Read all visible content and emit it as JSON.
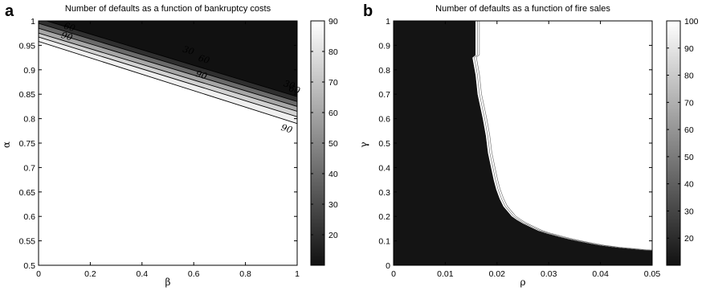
{
  "chart_data": [
    {
      "panel": "a",
      "type": "contour",
      "title": "Number of defaults as a function of bankruptcy costs",
      "xlabel": "β",
      "ylabel": "α",
      "xlim": [
        0,
        1
      ],
      "ylim": [
        0.5,
        1
      ],
      "xticks": [
        "0",
        "0.2",
        "0.4",
        "0.6",
        "0.8",
        "1"
      ],
      "yticks": [
        "0.5",
        "0.55",
        "0.6",
        "0.65",
        "0.7",
        "0.75",
        "0.8",
        "0.85",
        "0.9",
        "0.95",
        "1"
      ],
      "colorbar": {
        "min": 10,
        "max": 90,
        "ticks": [
          "20",
          "30",
          "40",
          "50",
          "60",
          "70",
          "80",
          "90"
        ]
      },
      "contour_lines": [
        {
          "level": 10,
          "x": [
            0,
            1
          ],
          "y": [
            1.005,
            0.845
          ]
        },
        {
          "level": 30,
          "x": [
            0,
            1
          ],
          "y": [
            0.995,
            0.835
          ]
        },
        {
          "level": 50,
          "x": [
            0,
            1
          ],
          "y": [
            0.985,
            0.825
          ]
        },
        {
          "level": 70,
          "x": [
            0,
            1
          ],
          "y": [
            0.975,
            0.815
          ]
        },
        {
          "level": 80,
          "x": [
            0,
            1
          ],
          "y": [
            0.967,
            0.804
          ]
        },
        {
          "level": 90,
          "x": [
            0,
            1
          ],
          "y": [
            0.958,
            0.79
          ]
        }
      ],
      "contour_labels": [
        {
          "text": "60",
          "x": 0.12,
          "y": 0.988
        },
        {
          "text": "90",
          "x": 0.11,
          "y": 0.969
        },
        {
          "text": "30",
          "x": 0.58,
          "y": 0.94
        },
        {
          "text": "60",
          "x": 0.64,
          "y": 0.922
        },
        {
          "text": "90",
          "x": 0.63,
          "y": 0.89
        },
        {
          "text": "30",
          "x": 0.97,
          "y": 0.87
        },
        {
          "text": "60",
          "x": 0.99,
          "y": 0.86
        },
        {
          "text": "90",
          "x": 0.96,
          "y": 0.78
        }
      ]
    },
    {
      "panel": "b",
      "type": "contour",
      "title": "Number of defaults as a function of fire sales",
      "xlabel": "ρ",
      "ylabel": "γ",
      "xlim": [
        0,
        0.05
      ],
      "ylim": [
        0,
        1
      ],
      "xticks": [
        "0",
        "0.01",
        "0.02",
        "0.03",
        "0.04",
        "0.05"
      ],
      "yticks": [
        "0",
        "0.1",
        "0.2",
        "0.3",
        "0.4",
        "0.5",
        "0.6",
        "0.7",
        "0.8",
        "0.9",
        "1"
      ],
      "colorbar": {
        "min": 10,
        "max": 100,
        "ticks": [
          "20",
          "30",
          "40",
          "50",
          "60",
          "70",
          "80",
          "90",
          "100"
        ]
      },
      "boundary": {
        "x": [
          0.0158,
          0.0158,
          0.0152,
          0.0158,
          0.0162,
          0.0172,
          0.0178,
          0.0182,
          0.0188,
          0.0193,
          0.0198,
          0.0205,
          0.0212,
          0.022,
          0.0228,
          0.0238,
          0.025,
          0.0265,
          0.028,
          0.0298,
          0.032,
          0.034,
          0.036,
          0.038,
          0.04,
          0.043,
          0.046,
          0.048,
          0.05
        ],
        "y": [
          1.0,
          0.86,
          0.85,
          0.78,
          0.7,
          0.6,
          0.53,
          0.46,
          0.4,
          0.35,
          0.31,
          0.27,
          0.24,
          0.22,
          0.2,
          0.185,
          0.17,
          0.155,
          0.14,
          0.128,
          0.116,
          0.105,
          0.096,
          0.088,
          0.08,
          0.072,
          0.066,
          0.062,
          0.06
        ]
      }
    }
  ]
}
